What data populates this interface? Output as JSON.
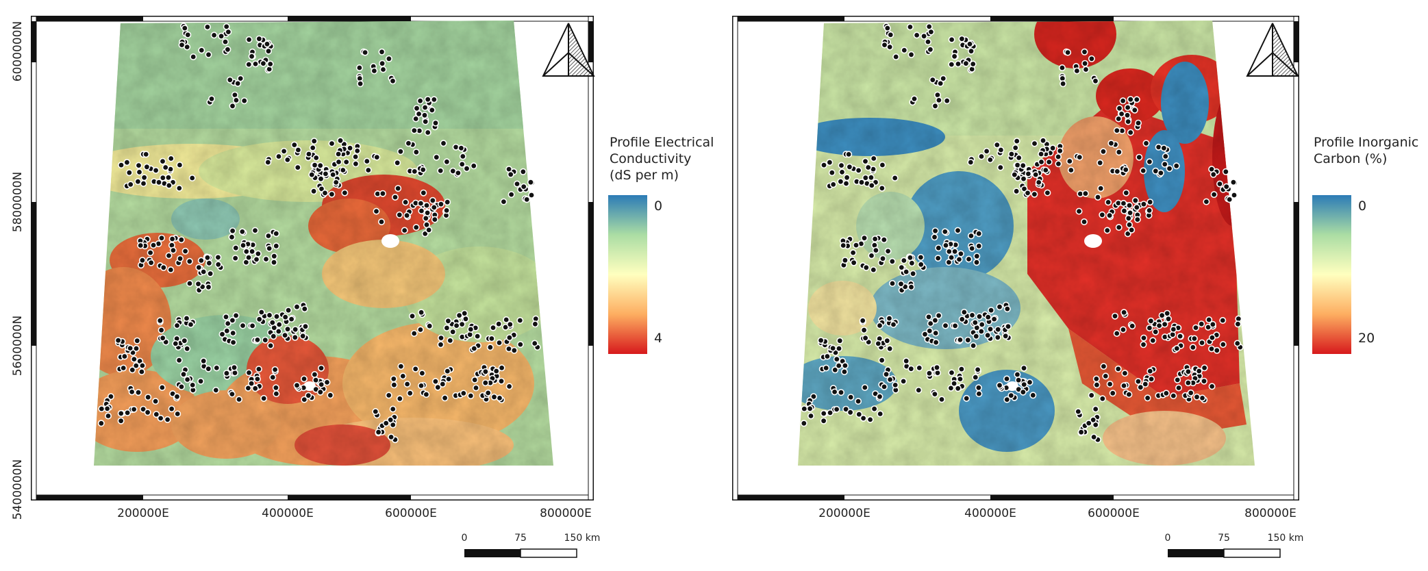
{
  "maps": [
    {
      "id": "ec",
      "legend": {
        "title_lines": [
          "Profile Electrical",
          "Conductivity",
          "(dS per m)"
        ],
        "min_label": "0",
        "max_label": "4",
        "colors": [
          "#2c7bb6",
          "#abdda4",
          "#ffffbf",
          "#fdae61",
          "#d7191c"
        ]
      },
      "x_ticks": [
        "200000E",
        "400000E",
        "600000E",
        "800000E"
      ],
      "y_ticks": [
        "6000000N",
        "5800000N",
        "5600000N",
        "5400000N"
      ],
      "scale_bar": {
        "labels": [
          "0",
          "75",
          "150 km"
        ]
      }
    },
    {
      "id": "ic",
      "legend": {
        "title_lines": [
          "Profile Inorganic",
          "Carbon (%)"
        ],
        "min_label": "0",
        "max_label": "20",
        "colors": [
          "#2c7bb6",
          "#abdda4",
          "#ffffbf",
          "#fdae61",
          "#d7191c"
        ]
      },
      "x_ticks": [
        "200000E",
        "400000E",
        "600000E",
        "800000E"
      ],
      "y_ticks": [],
      "scale_bar": {
        "labels": [
          "0",
          "75",
          "150 km"
        ]
      }
    }
  ],
  "colors": {
    "frame": "#111111",
    "sample_point_fill": "#111111",
    "sample_point_stroke": "#ffffff"
  },
  "icons": {
    "north_arrow": "north-arrow-icon"
  }
}
